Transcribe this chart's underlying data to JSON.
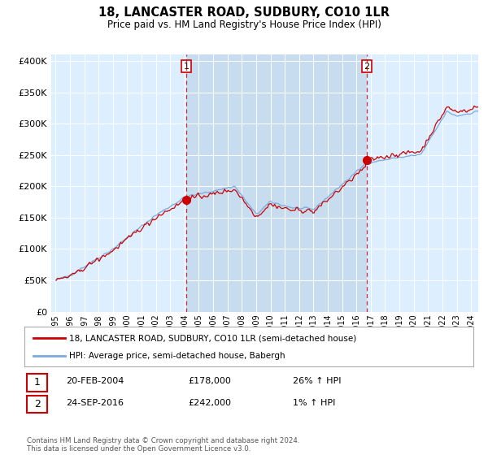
{
  "title": "18, LANCASTER ROAD, SUDBURY, CO10 1LR",
  "subtitle": "Price paid vs. HM Land Registry's House Price Index (HPI)",
  "red_color": "#cc0000",
  "blue_color": "#7aaadd",
  "bg_color": "#ddeeff",
  "shade_color": "#c8dcf0",
  "legend_entry1": "18, LANCASTER ROAD, SUDBURY, CO10 1LR (semi-detached house)",
  "legend_entry2": "HPI: Average price, semi-detached house, Babergh",
  "annotation1_date": "20-FEB-2004",
  "annotation1_price": "£178,000",
  "annotation1_hpi": "26% ↑ HPI",
  "annotation2_date": "24-SEP-2016",
  "annotation2_price": "£242,000",
  "annotation2_hpi": "1% ↑ HPI",
  "footer": "Contains HM Land Registry data © Crown copyright and database right 2024.\nThis data is licensed under the Open Government Licence v3.0.",
  "sale1_x": 2004.12,
  "sale1_y": 178000,
  "sale2_x": 2016.73,
  "sale2_y": 242000,
  "ylim": [
    0,
    410000
  ],
  "yticks": [
    0,
    50000,
    100000,
    150000,
    200000,
    250000,
    300000,
    350000,
    400000
  ],
  "ytick_labels": [
    "£0",
    "£50K",
    "£100K",
    "£150K",
    "£200K",
    "£250K",
    "£300K",
    "£350K",
    "£400K"
  ],
  "xlim_start": 1995.0,
  "xlim_end": 2024.5
}
